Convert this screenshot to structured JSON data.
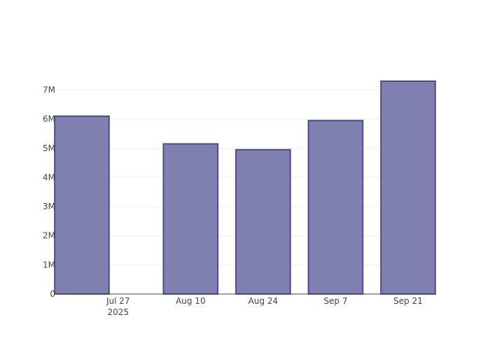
{
  "chart_data": {
    "type": "bar",
    "title": "",
    "xlabel": "",
    "ylabel": "",
    "categories": [
      "2025-07-20",
      "2025-08-10",
      "2025-08-24",
      "2025-09-07",
      "2025-09-21"
    ],
    "values": [
      6100000,
      5150000,
      4950000,
      5950000,
      7300000
    ],
    "ylim": [
      0,
      7300000
    ],
    "x_ticks": [
      {
        "date": "2025-07-27",
        "label": "Jul 27",
        "sublabel": "2025"
      },
      {
        "date": "2025-08-10",
        "label": "Aug 10"
      },
      {
        "date": "2025-08-24",
        "label": "Aug 24"
      },
      {
        "date": "2025-09-07",
        "label": "Sep 7"
      },
      {
        "date": "2025-09-21",
        "label": "Sep 21"
      }
    ],
    "y_ticks": [
      {
        "value": 0,
        "label": "0"
      },
      {
        "value": 1000000,
        "label": "1M"
      },
      {
        "value": 2000000,
        "label": "2M"
      },
      {
        "value": 3000000,
        "label": "3M"
      },
      {
        "value": 4000000,
        "label": "4M"
      },
      {
        "value": 5000000,
        "label": "5M"
      },
      {
        "value": 6000000,
        "label": "6M"
      },
      {
        "value": 7000000,
        "label": "7M"
      }
    ],
    "grid": true,
    "colors": {
      "bar_fill": "#7f7fb0",
      "bar_stroke": "#4d4d8c",
      "grid": "#eeeeee",
      "axis": "#444444"
    }
  }
}
